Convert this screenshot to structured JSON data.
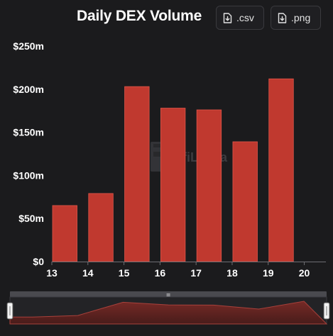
{
  "chart_data": {
    "type": "bar",
    "title": "Daily DEX Volume",
    "xlabel": "",
    "ylabel": "",
    "x": [
      13,
      14,
      15,
      16,
      17,
      18,
      19
    ],
    "values": [
      65,
      79,
      203,
      178,
      176,
      139,
      212
    ],
    "value_unit": "millions USD",
    "xlim": [
      13,
      20.6
    ],
    "ylim": [
      0,
      250
    ],
    "y_ticks": [
      0,
      50,
      100,
      150,
      200,
      250
    ],
    "y_tick_labels": [
      "$0",
      "$50m",
      "$100m",
      "$150m",
      "$200m",
      "$250m"
    ],
    "x_ticks": [
      13,
      14,
      15,
      16,
      17,
      18,
      19,
      20
    ],
    "x_tick_labels": [
      "13",
      "14",
      "15",
      "16",
      "17",
      "18",
      "19",
      "20"
    ],
    "grid": false,
    "legend": "none",
    "bar_color": "#c0392f",
    "bar_border_color": "#e0564a",
    "background_color": "#1b1b1d",
    "watermark": "DefiLlama",
    "brush": {
      "series_values": [
        65,
        79,
        203,
        178,
        176,
        139,
        212
      ],
      "range": [
        13,
        20.6
      ]
    }
  },
  "toolbar": {
    "csv_label": ".csv",
    "png_label": ".png",
    "download_icon": "file-download-icon"
  }
}
